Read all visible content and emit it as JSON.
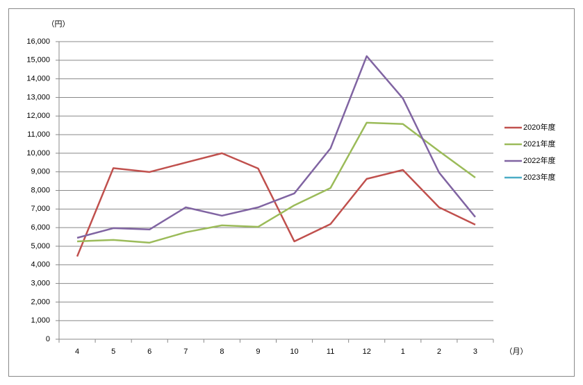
{
  "chart_data": {
    "type": "line",
    "y_label": "（円）",
    "x_label": "（月）",
    "categories": [
      "4",
      "5",
      "6",
      "7",
      "8",
      "9",
      "10",
      "11",
      "12",
      "1",
      "2",
      "3"
    ],
    "series": [
      {
        "name": "2020年度",
        "color": "#c0504d",
        "values": [
          4450,
          9200,
          8990,
          9500,
          10000,
          9180,
          5260,
          6190,
          8620,
          9100,
          7090,
          6160
        ]
      },
      {
        "name": "2021年度",
        "color": "#9bbb59",
        "values": [
          5260,
          5340,
          5190,
          5750,
          6120,
          6040,
          7200,
          8130,
          11640,
          11570,
          10110,
          8690
        ]
      },
      {
        "name": "2022年度",
        "color": "#8064a2",
        "values": [
          5450,
          5970,
          5900,
          7090,
          6640,
          7090,
          7840,
          10260,
          15220,
          12950,
          8960,
          6570
        ]
      },
      {
        "name": "2023年度",
        "color": "#4bacc6",
        "values": [
          null,
          null,
          null,
          null,
          null,
          null,
          null,
          null,
          null,
          null,
          null,
          null
        ]
      }
    ],
    "ylim": [
      0,
      16000
    ],
    "yticks": [
      0,
      {
        "value": 1000,
        "label": "1,000"
      },
      {
        "value": 2000,
        "label": "2,000"
      },
      {
        "value": 3000,
        "label": "3,000"
      },
      {
        "value": 4000,
        "label": "4,000"
      },
      {
        "value": 5000,
        "label": "5,000"
      },
      {
        "value": 6000,
        "label": "6,000"
      },
      {
        "value": 7000,
        "label": "7,000"
      },
      {
        "value": 8000,
        "label": "8,000"
      },
      {
        "value": 9000,
        "label": "9,000"
      },
      {
        "value": 10000,
        "label": "10,000"
      },
      {
        "value": 11000,
        "label": "11,000"
      },
      {
        "value": 12000,
        "label": "12,000"
      },
      {
        "value": 13000,
        "label": "13,000"
      },
      {
        "value": 14000,
        "label": "14,000"
      },
      {
        "value": 15000,
        "label": "15,000"
      },
      {
        "value": 16000,
        "label": "16,000"
      }
    ],
    "grid": true,
    "legend": "right"
  }
}
